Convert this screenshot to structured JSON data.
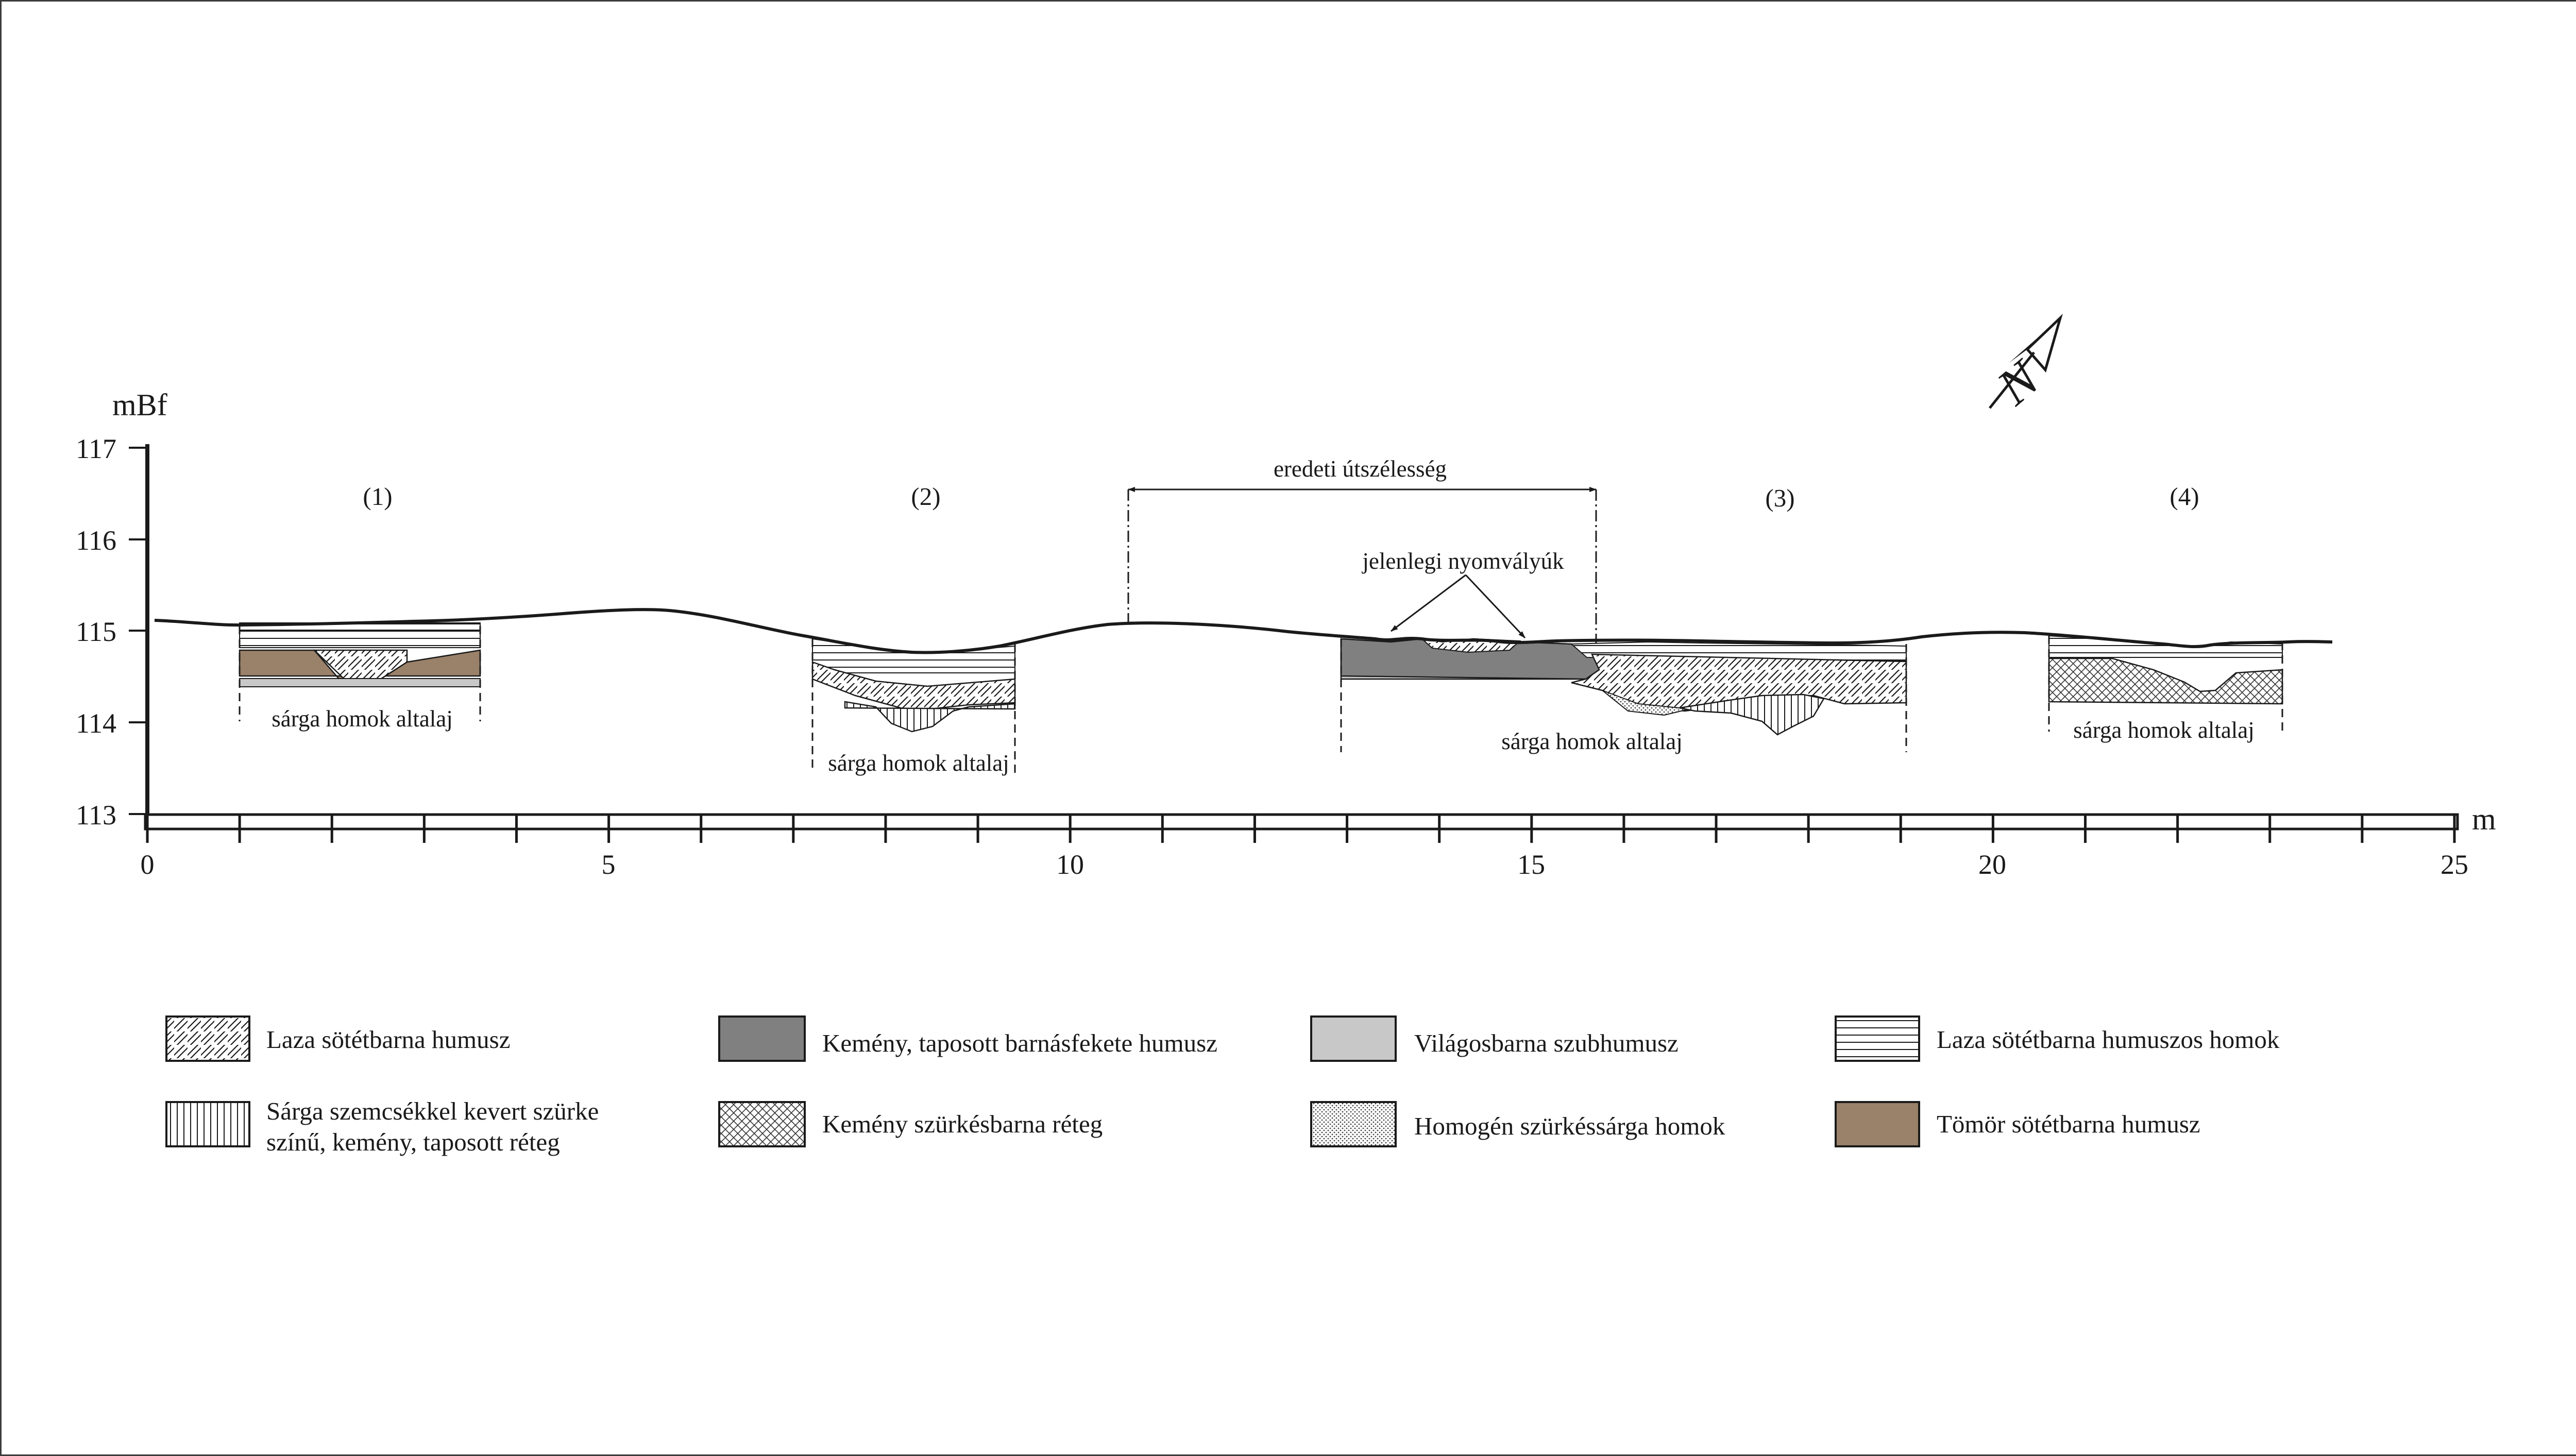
{
  "y_axis": {
    "unit": "mBf",
    "ticks": [
      117,
      116,
      115,
      114,
      113
    ],
    "range": [
      113,
      117
    ]
  },
  "x_axis": {
    "unit": "m",
    "ticks": [
      0,
      5,
      10,
      15,
      20,
      25
    ],
    "range": [
      0,
      25
    ]
  },
  "profiles": [
    {
      "number": "(1)",
      "subsoil_label": "sárga homok altalaj"
    },
    {
      "number": "(2)",
      "subsoil_label": "sárga homok altalaj"
    },
    {
      "number": "(3)",
      "subsoil_label": "sárga homok altalaj"
    },
    {
      "number": "(4)",
      "subsoil_label": "sárga homok altalaj"
    }
  ],
  "annotations": {
    "original_width": "eredeti útszélesség",
    "current_ruts": "jelenlegi nyomvályúk"
  },
  "north_arrow": {
    "letter": "N",
    "icon": "north-arrow-icon"
  },
  "legend": [
    {
      "pattern": "diagonal-hatch",
      "text": "Laza sötétbarna humusz"
    },
    {
      "pattern": "solid-dark-gray",
      "color": "#808080",
      "text": "Kemény, taposott barnásfekete humusz"
    },
    {
      "pattern": "solid-light-gray",
      "color": "#c8c8c8",
      "text": "Világosbarna szubhumusz"
    },
    {
      "pattern": "horizontal-lines",
      "text": "Laza sötétbarna humuszos homok"
    },
    {
      "pattern": "vertical-lines",
      "text_line1": "Sárga szemcsékkel kevert szürke",
      "text_line2": "színű, kemény, taposott réteg"
    },
    {
      "pattern": "crosshatch",
      "text": "Kemény szürkésbarna réteg"
    },
    {
      "pattern": "dotted",
      "text": "Homogén szürkéssárga homok"
    },
    {
      "pattern": "solid-brown",
      "color": "#9a8169",
      "text": "Tömör sötétbarna humusz"
    }
  ]
}
